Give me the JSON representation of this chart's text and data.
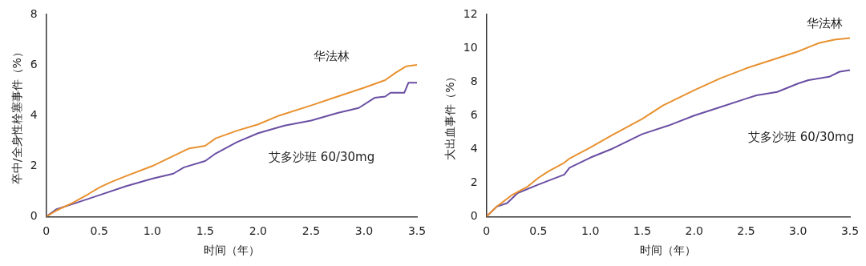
{
  "chart_data": [
    {
      "type": "line",
      "xlabel": "时间（年）",
      "ylabel": "卒中/全身性栓塞事件（%）",
      "xlim": [
        0,
        3.5
      ],
      "ylim": [
        0,
        8
      ],
      "xticks": [
        0,
        0.5,
        {
          "value": 1,
          "label": "1.0"
        },
        1.5,
        {
          "value": 2,
          "label": "2.0"
        },
        2.5,
        {
          "value": 3,
          "label": "3.0"
        },
        3.5
      ],
      "yticks": [
        0,
        2,
        4,
        6,
        8
      ],
      "grid": false,
      "legend": false,
      "marker": "none",
      "series": [
        {
          "name": "华法林",
          "color": "#e8912f",
          "x": [
            0,
            0.1,
            0.25,
            0.4,
            0.5,
            0.6,
            0.75,
            1.0,
            1.2,
            1.35,
            1.5,
            1.6,
            1.8,
            2.0,
            2.2,
            2.5,
            2.75,
            3.0,
            3.2,
            3.3,
            3.4,
            3.5
          ],
          "values": [
            0,
            0.25,
            0.55,
            0.9,
            1.15,
            1.35,
            1.6,
            2.0,
            2.4,
            2.7,
            2.8,
            3.1,
            3.4,
            3.65,
            4.0,
            4.4,
            4.75,
            5.1,
            5.4,
            5.7,
            5.95,
            6.0
          ]
        },
        {
          "name": "艾多沙班 60/30mg",
          "color": "#6a4fa3",
          "x": [
            0,
            0.1,
            0.25,
            0.5,
            0.75,
            1.0,
            1.2,
            1.3,
            1.5,
            1.6,
            1.8,
            2.0,
            2.25,
            2.5,
            2.75,
            2.95,
            3.1,
            3.2,
            3.25,
            3.38,
            3.42,
            3.5
          ],
          "values": [
            0,
            0.3,
            0.5,
            0.85,
            1.2,
            1.5,
            1.7,
            1.95,
            2.2,
            2.5,
            2.95,
            3.3,
            3.6,
            3.8,
            4.1,
            4.3,
            4.7,
            4.75,
            4.9,
            4.9,
            5.3,
            5.3
          ]
        }
      ]
    },
    {
      "type": "line",
      "xlabel": "时间（年）",
      "ylabel": "大出血事件（%）",
      "xlim": [
        0,
        3.5
      ],
      "ylim": [
        0,
        12
      ],
      "xticks": [
        0,
        0.5,
        {
          "value": 1,
          "label": "1.0"
        },
        1.5,
        {
          "value": 2,
          "label": "2.0"
        },
        2.5,
        {
          "value": 3,
          "label": "3.0"
        },
        3.5
      ],
      "yticks": [
        0,
        2,
        4,
        6,
        8,
        10,
        12
      ],
      "grid": false,
      "legend": false,
      "marker": "none",
      "series": [
        {
          "name": "华法林",
          "color": "#e8912f",
          "x": [
            0,
            0.1,
            0.25,
            0.4,
            0.5,
            0.6,
            0.75,
            0.8,
            1.0,
            1.2,
            1.5,
            1.7,
            2.0,
            2.25,
            2.5,
            2.75,
            3.0,
            3.2,
            3.35,
            3.5
          ],
          "values": [
            0,
            0.6,
            1.3,
            1.8,
            2.3,
            2.7,
            3.2,
            3.45,
            4.1,
            4.8,
            5.8,
            6.6,
            7.5,
            8.2,
            8.8,
            9.3,
            9.8,
            10.3,
            10.5,
            10.6
          ]
        },
        {
          "name": "艾多沙班 60/30mg",
          "color": "#6a4fa3",
          "x": [
            0,
            0.1,
            0.2,
            0.3,
            0.5,
            0.75,
            0.8,
            1.0,
            1.2,
            1.5,
            1.75,
            2.0,
            2.25,
            2.5,
            2.6,
            2.8,
            3.0,
            3.1,
            3.3,
            3.4,
            3.5
          ],
          "values": [
            0,
            0.6,
            0.8,
            1.4,
            1.9,
            2.5,
            2.9,
            3.5,
            4.0,
            4.9,
            5.4,
            6.0,
            6.5,
            7.0,
            7.2,
            7.4,
            7.9,
            8.1,
            8.3,
            8.6,
            8.7
          ]
        }
      ]
    }
  ]
}
